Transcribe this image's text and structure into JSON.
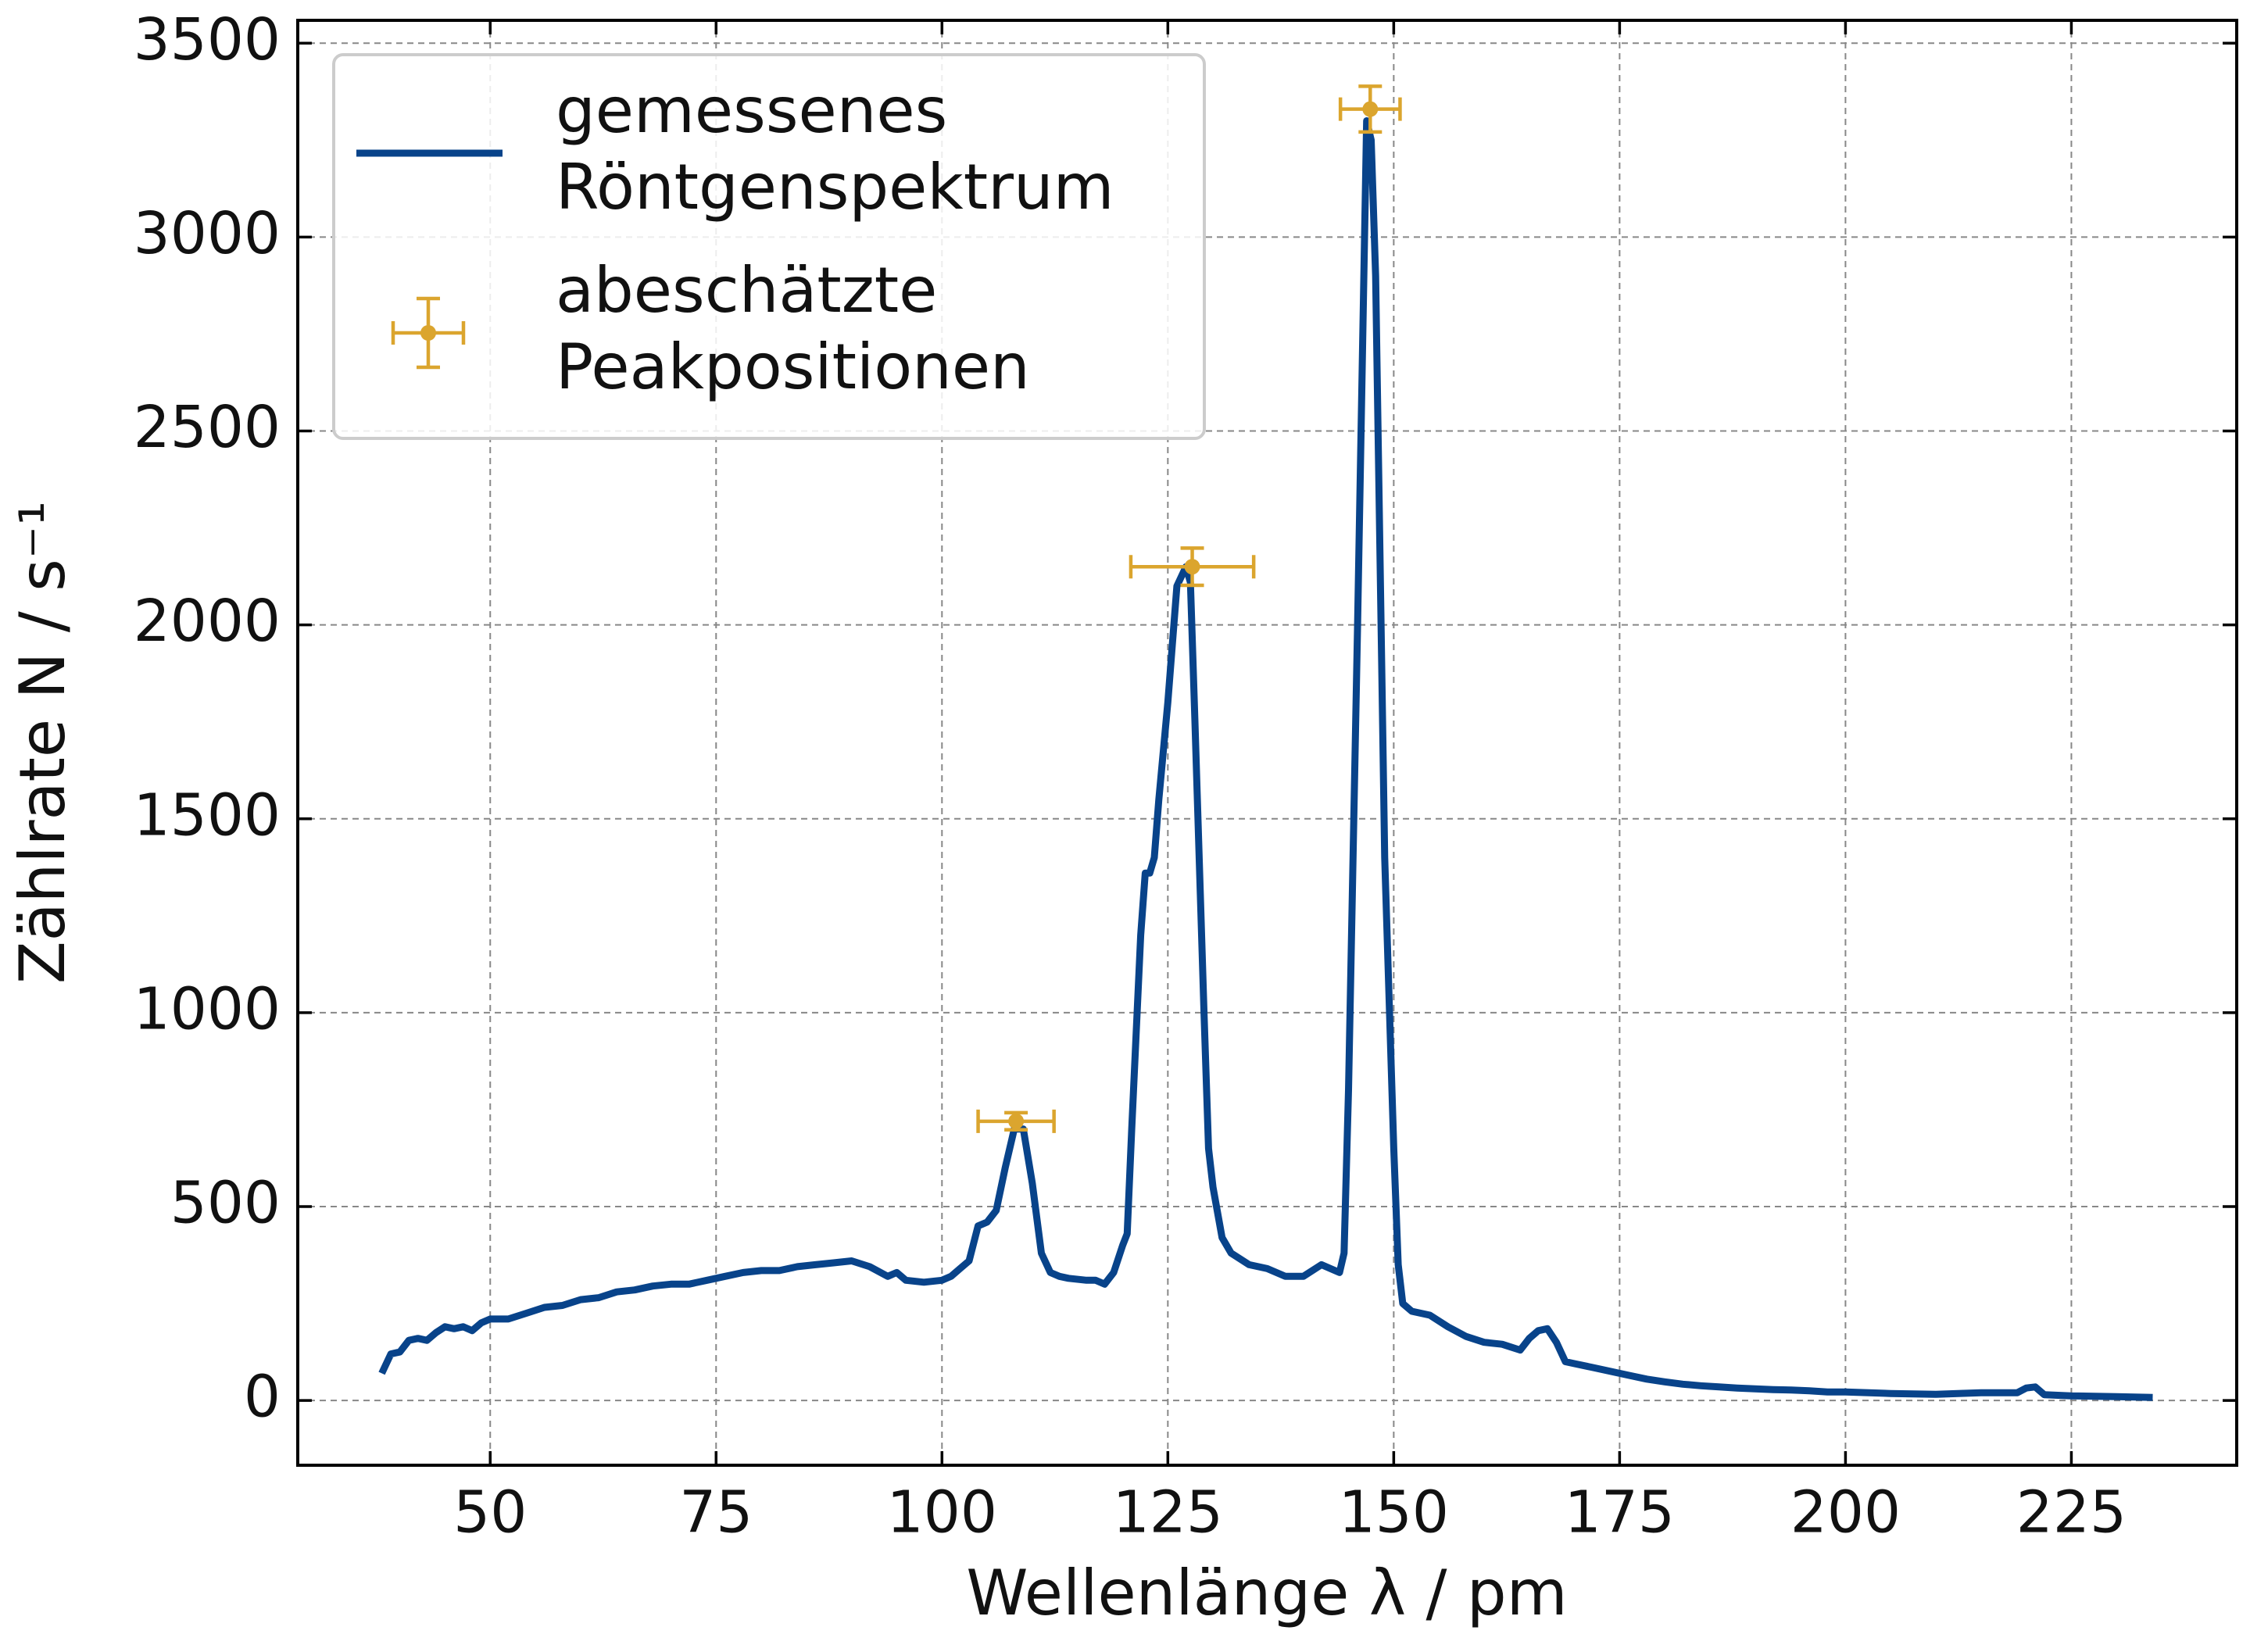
{
  "chart_data": {
    "type": "line",
    "xlabel": "Wellenlänge λ / pm",
    "ylabel": "Zählrate N / s⁻¹",
    "xlim": [
      28.7,
      243.3
    ],
    "ylim": [
      -167,
      3559
    ],
    "xticks": [
      50,
      75,
      100,
      125,
      150,
      175,
      200,
      225
    ],
    "yticks": [
      0,
      500,
      1000,
      1500,
      2000,
      2500,
      3000,
      3500
    ],
    "grid": true,
    "legend": "upper left",
    "series": [
      {
        "name": "gemessenes\nRöntgenspektrum",
        "color": "#08438a",
        "x": [
          38,
          39,
          40,
          41,
          42,
          43,
          44,
          45,
          46,
          47,
          48,
          49,
          50,
          52,
          54,
          56,
          58,
          60,
          62,
          64,
          66,
          68,
          70,
          72,
          74,
          76,
          78,
          80,
          82,
          84,
          86,
          88,
          90,
          92,
          94,
          95,
          96,
          98,
          100,
          101,
          102,
          103,
          104,
          105,
          106,
          107,
          108,
          109,
          110,
          111,
          112,
          113,
          114,
          116,
          117,
          118,
          119,
          120,
          120.5,
          121,
          122,
          122.5,
          123,
          123.5,
          124,
          125,
          126,
          127,
          127.5,
          128,
          129,
          129.5,
          130,
          131,
          132,
          134,
          136,
          138,
          140,
          142,
          143,
          144,
          144.5,
          145,
          146,
          147,
          147.5,
          148,
          149,
          150,
          150.5,
          151,
          152,
          154,
          156,
          158,
          160,
          162,
          164,
          165,
          166,
          167,
          168,
          169,
          170,
          172,
          174,
          176,
          178,
          180,
          182,
          184,
          186,
          188,
          190,
          192,
          194,
          196,
          198,
          200,
          205,
          210,
          215,
          219,
          220,
          221,
          222,
          225,
          230,
          234
        ],
        "values": [
          70,
          120,
          125,
          155,
          160,
          155,
          175,
          190,
          185,
          190,
          180,
          200,
          210,
          210,
          225,
          240,
          245,
          260,
          265,
          280,
          285,
          295,
          300,
          300,
          310,
          320,
          330,
          335,
          335,
          345,
          350,
          355,
          360,
          345,
          320,
          330,
          310,
          305,
          310,
          320,
          340,
          360,
          450,
          460,
          490,
          600,
          700,
          700,
          560,
          380,
          330,
          320,
          315,
          310,
          310,
          300,
          330,
          400,
          430,
          700,
          1200,
          1360,
          1360,
          1400,
          1550,
          1800,
          2100,
          2150,
          2110,
          1750,
          1000,
          650,
          550,
          420,
          380,
          350,
          340,
          320,
          320,
          350,
          340,
          330,
          380,
          800,
          2000,
          3300,
          3250,
          2900,
          1400,
          650,
          350,
          250,
          230,
          220,
          190,
          165,
          150,
          145,
          130,
          160,
          180,
          185,
          150,
          100,
          95,
          85,
          75,
          65,
          55,
          48,
          42,
          38,
          35,
          32,
          30,
          28,
          27,
          25,
          22,
          22,
          18,
          16,
          20,
          20,
          32,
          35,
          15,
          12,
          10,
          8
        ]
      },
      {
        "name": "abeschätzte\nPeakpositionen",
        "color": "#dba52e",
        "x": [
          108.2,
          127.7,
          147.4
        ],
        "values": [
          720,
          2150,
          3330
        ],
        "xerr": [
          4.2,
          6.8,
          3.3
        ],
        "yerr": [
          22,
          48,
          59
        ]
      }
    ]
  }
}
